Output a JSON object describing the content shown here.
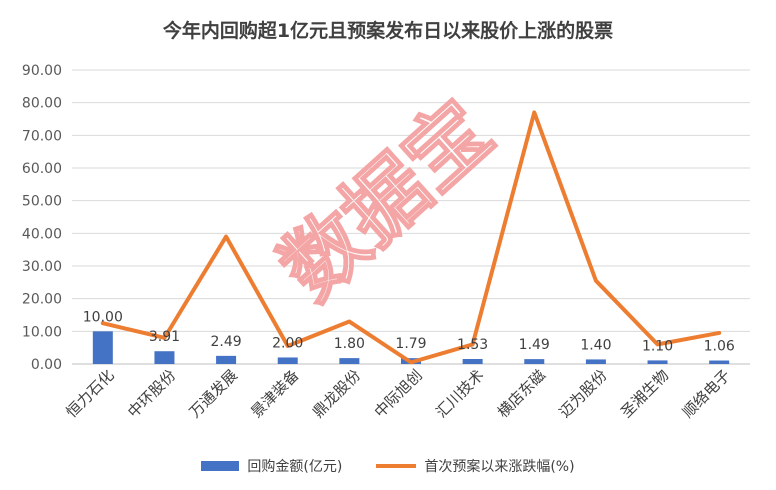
{
  "chart_data": {
    "type": "bar",
    "title": "今年内回购超1亿元且预案发布日以来股价上涨的股票",
    "categories": [
      "恒力石化",
      "中环股份",
      "万通发展",
      "景津装备",
      "鼎龙股份",
      "中际旭创",
      "汇川技术",
      "横店东磁",
      "迈为股份",
      "圣湘生物",
      "顺络电子"
    ],
    "series": [
      {
        "name": "回购金额(亿元)",
        "type": "bar",
        "color": "#4472C4",
        "values": [
          10.0,
          3.91,
          2.49,
          2.0,
          1.8,
          1.79,
          1.53,
          1.49,
          1.4,
          1.1,
          1.06
        ],
        "labels": [
          "10.00",
          "3.91",
          "2.49",
          "2.00",
          "1.80",
          "1.79",
          "1.53",
          "1.49",
          "1.40",
          "1.10",
          "1.06"
        ]
      },
      {
        "name": "首次预案以来涨跌幅(%)",
        "type": "line",
        "color": "#ED7D31",
        "values": [
          12.5,
          8.0,
          39.0,
          5.5,
          13.0,
          0.5,
          6.0,
          77.0,
          25.5,
          6.0,
          9.5
        ]
      }
    ],
    "y_ticks": [
      "0.00",
      "10.00",
      "20.00",
      "30.00",
      "40.00",
      "50.00",
      "60.00",
      "70.00",
      "80.00",
      "90.00"
    ],
    "ylim": [
      0,
      90
    ],
    "grid": true,
    "legend": "bottom",
    "watermark": "数据宝"
  }
}
